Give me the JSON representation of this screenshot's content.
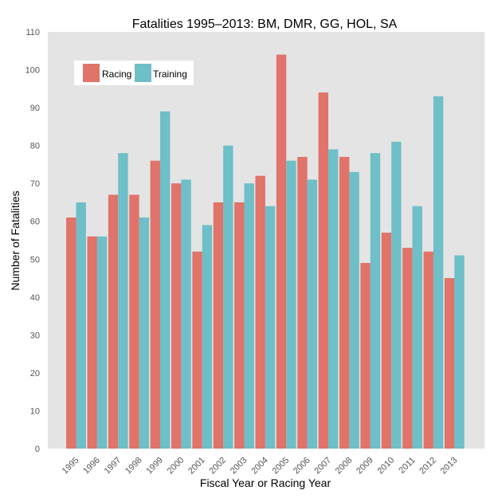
{
  "chart_data": {
    "type": "bar",
    "title": "Fatalities 1995–2013: BM, DMR, GG, HOL, SA",
    "xlabel": "Fiscal Year or Racing Year",
    "ylabel": "Number of Fatalities",
    "ylim": [
      0,
      110
    ],
    "yticks": [
      0,
      10,
      20,
      30,
      40,
      50,
      60,
      70,
      80,
      90,
      100,
      110
    ],
    "grid": false,
    "legend_position": "top-left",
    "categories": [
      "1995",
      "1996",
      "1997",
      "1998",
      "1999",
      "2000",
      "2001",
      "2002",
      "2003",
      "2004",
      "2005",
      "2006",
      "2007",
      "2008",
      "2009",
      "2010",
      "2011",
      "2012",
      "2013"
    ],
    "series": [
      {
        "name": "Racing",
        "color": "#E0736A",
        "values": [
          61,
          56,
          67,
          67,
          76,
          70,
          52,
          65,
          65,
          72,
          104,
          77,
          94,
          77,
          49,
          57,
          53,
          52,
          45
        ]
      },
      {
        "name": "Training",
        "color": "#6EBFC7",
        "values": [
          65,
          56,
          78,
          61,
          89,
          71,
          59,
          80,
          70,
          64,
          76,
          71,
          79,
          73,
          78,
          81,
          64,
          93,
          51
        ]
      }
    ],
    "colors": {
      "plot_background": "#E4E4E4",
      "legend_background": "#FFFFFF"
    }
  }
}
